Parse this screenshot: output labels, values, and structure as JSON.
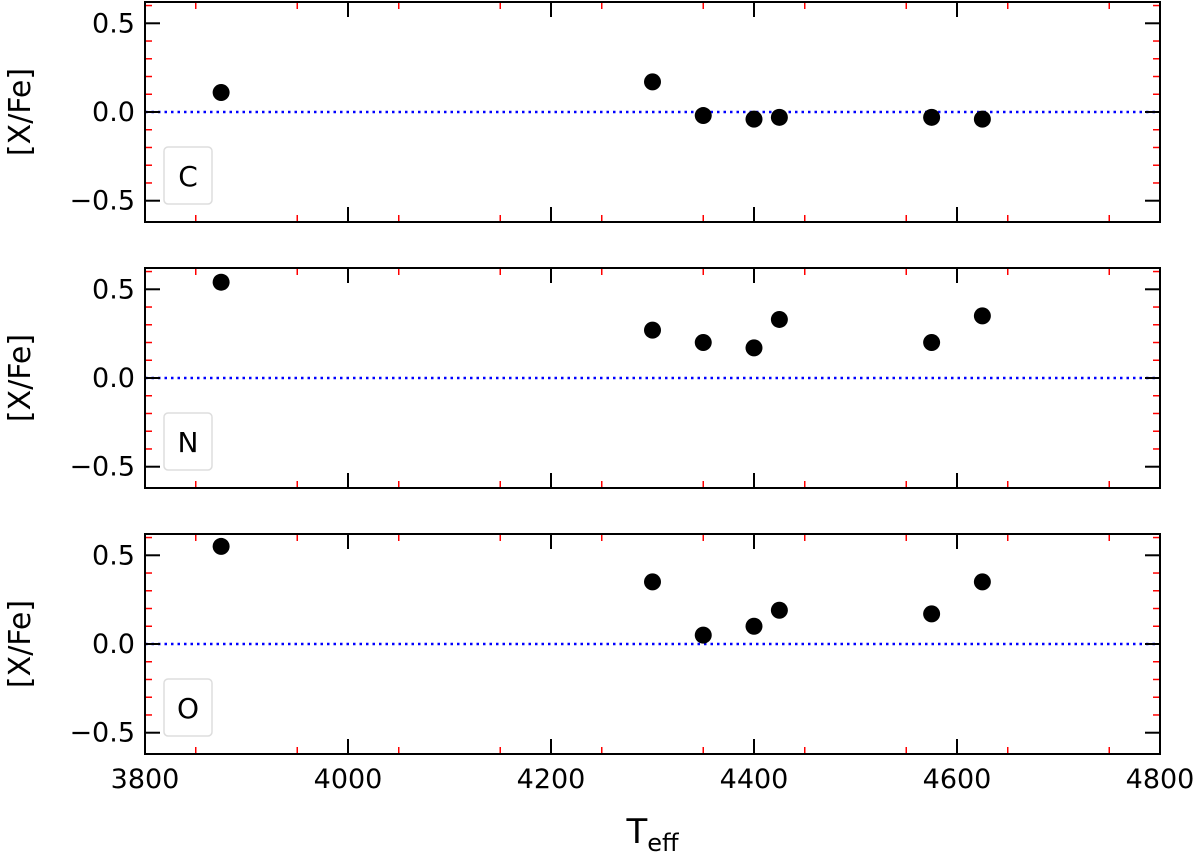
{
  "chart_data": [
    {
      "type": "scatter",
      "xlabel": "T",
      "xlabel_sub": "eff",
      "ylabel": "[X/Fe]",
      "xlim": [
        3800,
        4800
      ],
      "ylim": [
        -0.62,
        0.62
      ],
      "x_ticks": [
        3800,
        4000,
        4200,
        4400,
        4600,
        4800
      ],
      "y_ticks": [
        0.5,
        0.0,
        -0.5
      ],
      "y_tick_labels": [
        "0.5",
        "0.0",
        "−0.5"
      ],
      "show_x_tick_labels": false,
      "reference_line": {
        "y": 0.0,
        "style": "dotted",
        "color": "#0000ff"
      },
      "legend": {
        "label": "C",
        "position": "lower-left"
      },
      "series": [
        {
          "x": [
            3875,
            4300,
            4350,
            4400,
            4425,
            4575,
            4625
          ],
          "y": [
            0.11,
            0.17,
            -0.02,
            -0.04,
            -0.03,
            -0.03,
            -0.04
          ]
        }
      ]
    },
    {
      "type": "scatter",
      "xlabel": "T",
      "xlabel_sub": "eff",
      "ylabel": "[X/Fe]",
      "xlim": [
        3800,
        4800
      ],
      "ylim": [
        -0.62,
        0.62
      ],
      "x_ticks": [
        3800,
        4000,
        4200,
        4400,
        4600,
        4800
      ],
      "y_ticks": [
        0.5,
        0.0,
        -0.5
      ],
      "y_tick_labels": [
        "0.5",
        "0.0",
        "−0.5"
      ],
      "show_x_tick_labels": false,
      "reference_line": {
        "y": 0.0,
        "style": "dotted",
        "color": "#0000ff"
      },
      "legend": {
        "label": "N",
        "position": "lower-left"
      },
      "series": [
        {
          "x": [
            3875,
            4300,
            4350,
            4400,
            4425,
            4575,
            4625
          ],
          "y": [
            0.54,
            0.27,
            0.2,
            0.17,
            0.33,
            0.2,
            0.35
          ]
        }
      ]
    },
    {
      "type": "scatter",
      "xlabel": "T",
      "xlabel_sub": "eff",
      "ylabel": "[X/Fe]",
      "xlim": [
        3800,
        4800
      ],
      "ylim": [
        -0.62,
        0.62
      ],
      "x_ticks": [
        3800,
        4000,
        4200,
        4400,
        4600,
        4800
      ],
      "x_tick_labels": [
        "3800",
        "4000",
        "4200",
        "4400",
        "4600",
        "4800"
      ],
      "y_ticks": [
        0.5,
        0.0,
        -0.5
      ],
      "y_tick_labels": [
        "0.5",
        "0.0",
        "−0.5"
      ],
      "show_x_tick_labels": true,
      "reference_line": {
        "y": 0.0,
        "style": "dotted",
        "color": "#0000ff"
      },
      "legend": {
        "label": "O",
        "position": "lower-left"
      },
      "series": [
        {
          "x": [
            3875,
            4300,
            4350,
            4400,
            4425,
            4575,
            4625
          ],
          "y": [
            0.55,
            0.35,
            0.05,
            0.1,
            0.19,
            0.17,
            0.35
          ]
        }
      ]
    }
  ],
  "colors": {
    "marker": "#000000",
    "minor_tick": "#ff0000",
    "reference_line": "#0000ff",
    "axes": "#000000"
  }
}
